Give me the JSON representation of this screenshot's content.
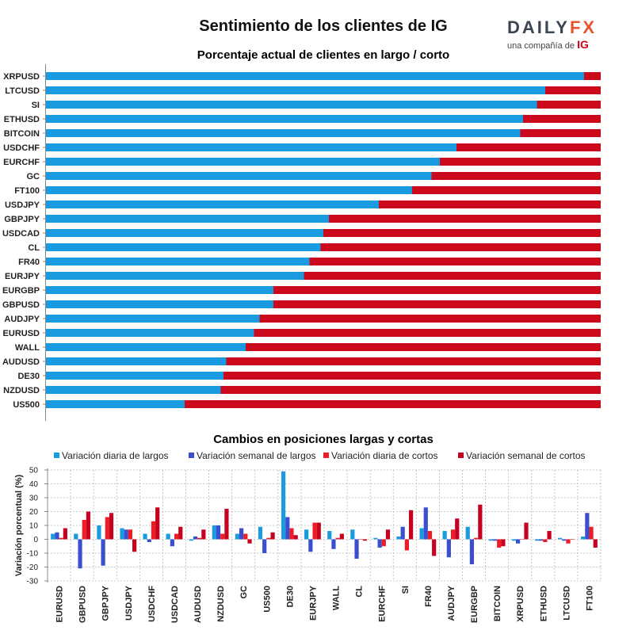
{
  "title": "Sentimiento de los clientes de IG",
  "logo": {
    "brand_left": "DAILY",
    "brand_right": "FX",
    "tagline": "una compañía de",
    "tagline_brand": "IG"
  },
  "colors": {
    "long": "#1a9be0",
    "short": "#cc0a1e",
    "long_weekly": "#3a4fd0",
    "short_daily": "#ee1c25",
    "short_weekly": "#c80020"
  },
  "chart_data": [
    {
      "type": "bar",
      "orientation": "horizontal",
      "stacked": true,
      "title": "Porcentaje actual de clientes en largo / corto",
      "categories": [
        "XRPUSD",
        "LTCUSD",
        "SI",
        "ETHUSD",
        "BITCOIN",
        "USDCHF",
        "EURCHF",
        "GC",
        "FT100",
        "USDJPY",
        "GBPJPY",
        "USDCAD",
        "CL",
        "FR40",
        "EURJPY",
        "EURGBP",
        "GBPUSD",
        "AUDJPY",
        "EURUSD",
        "WALL",
        "AUDUSD",
        "DE30",
        "NZDUSD",
        "US500"
      ],
      "series": [
        {
          "name": "Largo",
          "values": [
            97,
            90,
            88.5,
            86,
            85.5,
            74,
            71,
            69.5,
            66,
            60,
            51,
            50,
            49.5,
            47.5,
            46.5,
            41,
            41,
            38.5,
            37.5,
            36,
            32.5,
            32,
            31.5,
            25
          ]
        },
        {
          "name": "Corto",
          "values": [
            3,
            10,
            11.5,
            14,
            14.5,
            26,
            29,
            30.5,
            34,
            40,
            49,
            50,
            50.5,
            52.5,
            53.5,
            59,
            59,
            61.5,
            62.5,
            64,
            67.5,
            68,
            68.5,
            75
          ]
        }
      ],
      "xlim": [
        0,
        100
      ]
    },
    {
      "type": "bar",
      "orientation": "vertical",
      "title": "Cambios en posiciones largas y cortas",
      "ylabel": "Variación porcentual (%)",
      "xlabel": "",
      "ylim": [
        -30,
        50
      ],
      "yticks": [
        -30,
        -20,
        -10,
        0,
        10,
        20,
        30,
        40,
        50
      ],
      "grid": true,
      "categories": [
        "EURUSD",
        "GBPUSD",
        "GBPJPY",
        "USDJPY",
        "USDCHF",
        "USDCAD",
        "AUDUSD",
        "NZDUSD",
        "GC",
        "US500",
        "DE30",
        "EURJPY",
        "WALL",
        "CL",
        "EURCHF",
        "SI",
        "FR40",
        "AUDJPY",
        "EURGBP",
        "BITCOIN",
        "XRPUSD",
        "ETHUSD",
        "LTCUSD",
        "FT100"
      ],
      "series": [
        {
          "name": "Variación diaria de largos",
          "values": [
            4,
            4,
            10,
            8,
            4,
            4,
            -1,
            10,
            4,
            9,
            49,
            7,
            6,
            7,
            1,
            2,
            8,
            6,
            9,
            -1,
            -1,
            -1,
            1,
            2
          ]
        },
        {
          "name": "Variación semanal de largos",
          "values": [
            5,
            -21,
            -19,
            7,
            -2,
            -5,
            2,
            10,
            8,
            -10,
            16,
            -9,
            -7,
            -14,
            -6,
            9,
            23,
            -13,
            -18,
            -1,
            -3,
            -1,
            -1,
            19
          ]
        },
        {
          "name": "Variación diaria de cortos",
          "values": [
            1,
            14,
            16,
            7,
            13,
            4,
            1,
            4,
            4,
            1,
            8,
            12,
            1,
            0,
            -5,
            -8,
            6,
            7,
            1,
            -6,
            0,
            -2,
            -3,
            9
          ]
        },
        {
          "name": "Variación semanal de cortos",
          "values": [
            8,
            20,
            19,
            -9,
            23,
            9,
            7,
            22,
            -3,
            5,
            3,
            12,
            4,
            -1,
            7,
            21,
            -12,
            15,
            25,
            -5,
            12,
            6,
            0,
            -6
          ]
        }
      ]
    }
  ]
}
